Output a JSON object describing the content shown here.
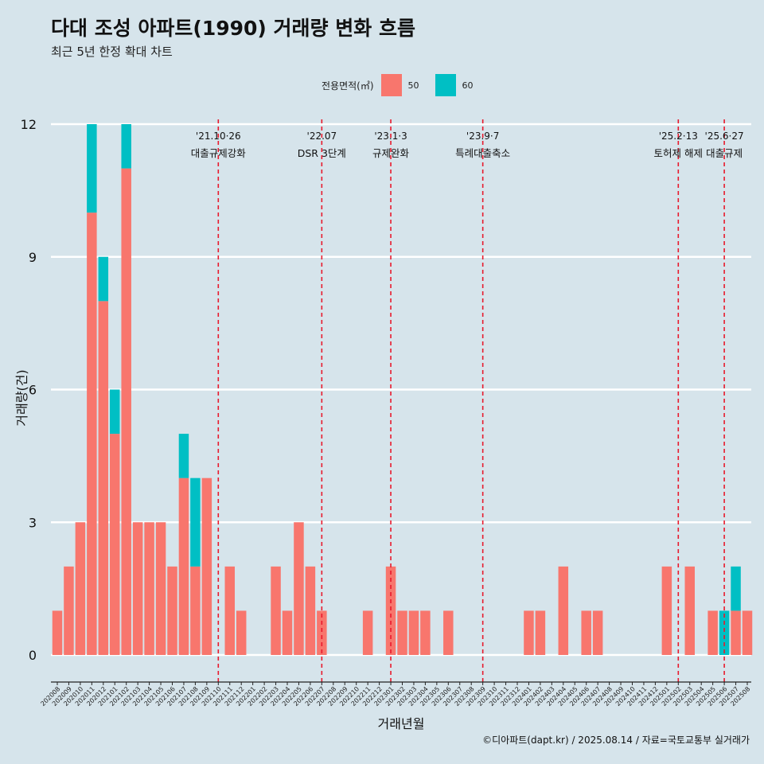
{
  "title": "다대 조성 아파트(1990) 거래량 변화 흐름",
  "subtitle": "최근 5년 한정 확대 차트",
  "caption": "©디아파트(dapt.kr) / 2025.08.14 / 자료=국토교통부 실거래가",
  "legend": {
    "title": "전용면적(㎡)",
    "items": [
      {
        "label": "50",
        "color": "#f8766d"
      },
      {
        "label": "60",
        "color": "#00bfc4"
      }
    ]
  },
  "chart_data": {
    "type": "bar",
    "xlabel": "거래년월",
    "ylabel": "거래량(건)",
    "ylim": [
      0,
      12
    ],
    "yticks": [
      0,
      3,
      6,
      9,
      12
    ],
    "grid": true,
    "legend_position": "top",
    "categories": [
      "202008",
      "202009",
      "202010",
      "202011",
      "202012",
      "202101",
      "202102",
      "202103",
      "202104",
      "202105",
      "202106",
      "202107",
      "202108",
      "202109",
      "202110",
      "202111",
      "202112",
      "202201",
      "202202",
      "202203",
      "202204",
      "202205",
      "202206",
      "202207",
      "202208",
      "202209",
      "202210",
      "202211",
      "202212",
      "202301",
      "202302",
      "202303",
      "202304",
      "202305",
      "202306",
      "202307",
      "202308",
      "202309",
      "202310",
      "202311",
      "202312",
      "202401",
      "202402",
      "202403",
      "202404",
      "202405",
      "202406",
      "202407",
      "202408",
      "202409",
      "202410",
      "202411",
      "202412",
      "202501",
      "202502",
      "202503",
      "202504",
      "202505",
      "202506",
      "202507",
      "202508"
    ],
    "series": [
      {
        "name": "50",
        "color": "#f8766d",
        "values": [
          1,
          2,
          3,
          10,
          8,
          5,
          11,
          3,
          3,
          3,
          2,
          4,
          2,
          4,
          0,
          2,
          1,
          0,
          0,
          2,
          1,
          3,
          2,
          1,
          0,
          0,
          0,
          1,
          0,
          2,
          1,
          1,
          1,
          0,
          1,
          0,
          0,
          0,
          0,
          0,
          0,
          1,
          1,
          0,
          2,
          0,
          1,
          1,
          0,
          0,
          0,
          0,
          0,
          2,
          0,
          2,
          0,
          1,
          0,
          1,
          1
        ]
      },
      {
        "name": "60",
        "color": "#00bfc4",
        "values": [
          0,
          0,
          0,
          2,
          1,
          1,
          1,
          0,
          0,
          0,
          0,
          1,
          2,
          0,
          0,
          0,
          0,
          0,
          0,
          0,
          0,
          0,
          0,
          0,
          0,
          0,
          0,
          0,
          0,
          0,
          0,
          0,
          0,
          0,
          0,
          0,
          0,
          0,
          0,
          0,
          0,
          0,
          0,
          0,
          0,
          0,
          0,
          0,
          0,
          0,
          0,
          0,
          0,
          0,
          0,
          0,
          0,
          0,
          1,
          1,
          0
        ]
      }
    ],
    "annotations": [
      {
        "category": "202110",
        "date": "'21.10·26",
        "label": "대출규제강화"
      },
      {
        "category": "202207",
        "date": "'22.07",
        "label": "DSR 3단계"
      },
      {
        "category": "202301",
        "date": "'23.1·3",
        "label": "규제완화"
      },
      {
        "category": "202309",
        "date": "'23.9·7",
        "label": "특례대출축소"
      },
      {
        "category": "202502",
        "date": "'25.2·13",
        "label": "토허제 해제"
      },
      {
        "category": "202506",
        "date": "'25.6·27",
        "label": "대출규제"
      }
    ]
  }
}
